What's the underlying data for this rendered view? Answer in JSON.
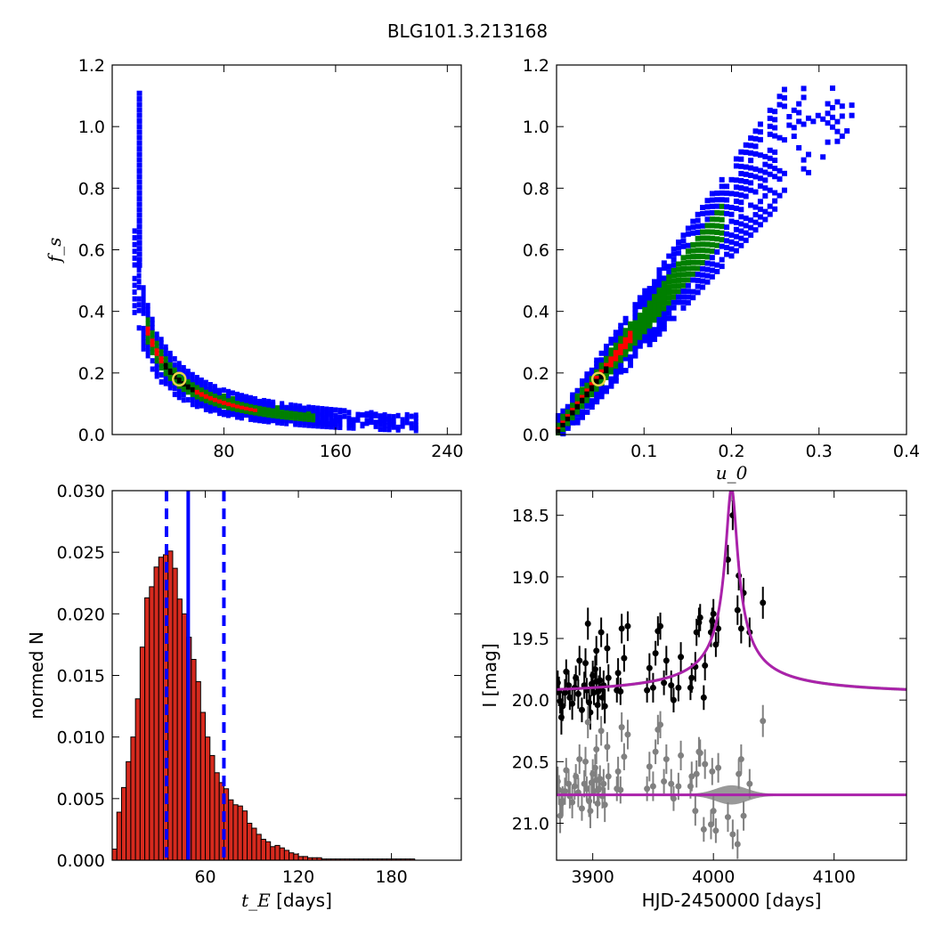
{
  "figure_title": "BLG101.3.213168",
  "chart_data": [
    {
      "type": "heatmap",
      "panel": "top-left",
      "xlabel": "",
      "ylabel": "f_s",
      "xlim": [
        0,
        250
      ],
      "ylim": [
        0,
        1.2
      ],
      "xticks": [
        "80",
        "160",
        "240"
      ],
      "xtick_values": [
        80,
        160,
        240
      ],
      "yticks": [
        "0.0",
        "0.2",
        "0.4",
        "0.6",
        "0.8",
        "1.0",
        "1.2"
      ],
      "ytick_values": [
        0,
        0.2,
        0.4,
        0.6,
        0.8,
        1.0,
        1.2
      ],
      "colors": {
        "outer": "#0000ff",
        "middle": "#007f00",
        "inner": "#ff0000",
        "core": "#000000"
      },
      "best_fit": {
        "tE": 48,
        "fs": 0.18
      },
      "relation": "fs = 8.6 / tE (approx. locus of the posterior)",
      "tE_range_outer": [
        16,
        220
      ],
      "tE_range_middle": [
        18,
        145
      ],
      "tE_range_inner": [
        25,
        105
      ]
    },
    {
      "type": "heatmap",
      "panel": "top-right",
      "xlabel": "u_0",
      "ylabel": "",
      "xlim": [
        0,
        0.4
      ],
      "ylim": [
        0,
        1.2
      ],
      "xticks": [
        "0.1",
        "0.2",
        "0.3",
        "0.4"
      ],
      "xtick_values": [
        0.1,
        0.2,
        0.3,
        0.4
      ],
      "yticks": [
        "0.0",
        "0.2",
        "0.4",
        "0.6",
        "0.8",
        "1.0",
        "1.2"
      ],
      "ytick_values": [
        0,
        0.2,
        0.4,
        0.6,
        0.8,
        1.0,
        1.2
      ],
      "colors": {
        "outer": "#0000ff",
        "middle": "#007f00",
        "inner": "#ff0000",
        "core": "#000000"
      },
      "best_fit": {
        "u0": 0.048,
        "fs": 0.18
      },
      "relation": "fs = 3.6 * u0 (approx. locus of the posterior)",
      "u0_range_outer": [
        0.0,
        0.34
      ],
      "u0_range_middle": [
        0.0,
        0.19
      ],
      "u0_range_inner": [
        0.0,
        0.09
      ]
    },
    {
      "type": "bar",
      "panel": "bottom-left",
      "xlabel": "[days]",
      "xlabel_math": "t_E",
      "ylabel": "normed N",
      "xlim": [
        0,
        225
      ],
      "ylim": [
        0,
        0.03
      ],
      "xticks": [
        "60",
        "120",
        "180"
      ],
      "xtick_values": [
        60,
        120,
        180
      ],
      "yticks": [
        "0.000",
        "0.005",
        "0.010",
        "0.015",
        "0.020",
        "0.025",
        "0.030"
      ],
      "ytick_values": [
        0,
        0.005,
        0.01,
        0.015,
        0.02,
        0.025,
        0.03
      ],
      "bin_width": 3,
      "bin_start": 0,
      "values": [
        0.0009,
        0.0039,
        0.0059,
        0.008,
        0.01,
        0.0131,
        0.0173,
        0.0213,
        0.0222,
        0.0238,
        0.0246,
        0.0248,
        0.0251,
        0.0237,
        0.0212,
        0.02,
        0.0181,
        0.0163,
        0.0145,
        0.012,
        0.01,
        0.0085,
        0.0071,
        0.0063,
        0.0058,
        0.0049,
        0.0045,
        0.0044,
        0.004,
        0.003,
        0.0026,
        0.0021,
        0.0017,
        0.0015,
        0.0011,
        0.0012,
        0.001,
        0.0008,
        0.0006,
        0.0005,
        0.0003,
        0.0003,
        0.0002,
        0.0002,
        0.0002,
        0.0001,
        0.0001,
        0.0001,
        0.0001,
        0.0001,
        0.0001,
        0.0001,
        0.0001,
        0.0001,
        0.0001,
        0.0001,
        0.0001,
        0.0001,
        0.0001,
        0.0001,
        0.0001,
        0.0001,
        0.0001,
        0.0001,
        0.0001
      ],
      "bar_color": "#d62a1e",
      "vlines": [
        {
          "x": 35,
          "style": "dashed",
          "color": "#0000ff"
        },
        {
          "x": 49,
          "style": "solid",
          "color": "#0000ff"
        },
        {
          "x": 72,
          "style": "dashed",
          "color": "#0000ff"
        }
      ]
    },
    {
      "type": "scatter",
      "panel": "bottom-right",
      "xlabel": "HJD-2450000 [days]",
      "ylabel": "I [mag]",
      "xlim": [
        3870,
        4160
      ],
      "ylim": [
        21.3,
        18.3
      ],
      "y_inverted": true,
      "xticks": [
        "3900",
        "4000",
        "4100"
      ],
      "xtick_values": [
        3900,
        4000,
        4100
      ],
      "yticks": [
        "18.5",
        "19.0",
        "19.5",
        "20.0",
        "20.5",
        "21.0"
      ],
      "ytick_values": [
        18.5,
        19.0,
        19.5,
        20.0,
        20.5,
        21.0
      ],
      "model": {
        "baseline": 19.97,
        "t0": 4015,
        "peak": 18.28,
        "tE": 4.8,
        "color": "#aa22aa",
        "band_color": "#808080"
      },
      "residual_baseline": 20.77,
      "series": [
        {
          "color": "#000000",
          "points": [
            [
              3871,
              19.86,
              0.1
            ],
            [
              3872,
              19.93,
              0.12
            ],
            [
              3873,
              20.01,
              0.1
            ],
            [
              3874,
              20.14,
              0.14
            ],
            [
              3875,
              20.05,
              0.12
            ],
            [
              3877,
              19.94,
              0.11
            ],
            [
              3878,
              19.77,
              0.1
            ],
            [
              3880,
              19.88,
              0.12
            ],
            [
              3881,
              19.98,
              0.1
            ],
            [
              3883,
              20.03,
              0.13
            ],
            [
              3885,
              19.9,
              0.11
            ],
            [
              3886,
              19.82,
              0.1
            ],
            [
              3888,
              19.95,
              0.12
            ],
            [
              3889,
              19.68,
              0.12
            ],
            [
              3891,
              20.08,
              0.1
            ],
            [
              3893,
              19.88,
              0.11
            ],
            [
              3894,
              19.7,
              0.12
            ],
            [
              3895,
              19.92,
              0.1
            ],
            [
              3897,
              20.02,
              0.13
            ],
            [
              3898,
              20.1,
              0.14
            ],
            [
              3899,
              19.87,
              0.1
            ],
            [
              3900,
              19.8,
              0.12
            ],
            [
              3901,
              19.94,
              0.1
            ],
            [
              3902,
              19.75,
              0.11
            ],
            [
              3903,
              19.85,
              0.1
            ],
            [
              3904,
              20.04,
              0.12
            ],
            [
              3905,
              19.92,
              0.12
            ],
            [
              3906,
              19.84,
              0.11
            ],
            [
              3908,
              19.98,
              0.1
            ],
            [
              3909,
              19.88,
              0.12
            ],
            [
              3910,
              20.05,
              0.14
            ],
            [
              3912,
              19.58,
              0.12
            ],
            [
              3913,
              19.82,
              0.11
            ],
            [
              3896,
              19.38,
              0.13
            ],
            [
              3903,
              19.6,
              0.12
            ],
            [
              3907,
              19.45,
              0.12
            ],
            [
              3920,
              19.92,
              0.1
            ],
            [
              3921,
              19.78,
              0.12
            ],
            [
              3923,
              19.93,
              0.11
            ],
            [
              3924,
              19.42,
              0.12
            ],
            [
              3926,
              19.66,
              0.11
            ],
            [
              3929,
              19.4,
              0.12
            ],
            [
              3945,
              19.92,
              0.1
            ],
            [
              3947,
              19.74,
              0.12
            ],
            [
              3950,
              19.9,
              0.12
            ],
            [
              3952,
              19.62,
              0.1
            ],
            [
              3954,
              19.44,
              0.12
            ],
            [
              3956,
              19.4,
              0.11
            ],
            [
              3959,
              19.86,
              0.1
            ],
            [
              3961,
              19.68,
              0.12
            ],
            [
              3965,
              19.88,
              0.12
            ],
            [
              3967,
              20.0,
              0.1
            ],
            [
              3971,
              19.9,
              0.11
            ],
            [
              3973,
              19.65,
              0.12
            ],
            [
              3981,
              19.9,
              0.1
            ],
            [
              3982,
              19.82,
              0.12
            ],
            [
              3985,
              19.73,
              0.12
            ],
            [
              3986,
              19.45,
              0.11
            ],
            [
              3988,
              19.37,
              0.12
            ],
            [
              3989,
              19.33,
              0.11
            ],
            [
              3992,
              19.98,
              0.1
            ],
            [
              3993,
              19.72,
              0.12
            ],
            [
              3998,
              19.45,
              0.12
            ],
            [
              3999,
              19.36,
              0.11
            ],
            [
              4000,
              19.3,
              0.12
            ],
            [
              4002,
              19.55,
              0.1
            ],
            [
              4004,
              19.42,
              0.12
            ],
            [
              4012,
              18.86,
              0.12
            ],
            [
              4016,
              18.5,
              0.12
            ],
            [
              4020,
              19.27,
              0.12
            ],
            [
              4021,
              18.99,
              0.12
            ],
            [
              4023,
              19.42,
              0.12
            ],
            [
              4025,
              19.13,
              0.12
            ],
            [
              4030,
              19.45,
              0.12
            ],
            [
              4041,
              19.21,
              0.13
            ]
          ]
        },
        {
          "color": "#808080",
          "points": [
            [
              3871,
              20.66,
              0.12
            ],
            [
              3872,
              20.73,
              0.12
            ],
            [
              3873,
              20.94,
              0.14
            ],
            [
              3874,
              20.84,
              0.12
            ],
            [
              3875,
              20.82,
              0.12
            ],
            [
              3877,
              20.74,
              0.11
            ],
            [
              3878,
              20.57,
              0.1
            ],
            [
              3880,
              20.68,
              0.12
            ],
            [
              3881,
              20.78,
              0.1
            ],
            [
              3883,
              20.83,
              0.13
            ],
            [
              3885,
              20.7,
              0.11
            ],
            [
              3886,
              20.62,
              0.1
            ],
            [
              3888,
              20.75,
              0.12
            ],
            [
              3889,
              20.48,
              0.12
            ],
            [
              3891,
              20.88,
              0.1
            ],
            [
              3893,
              20.68,
              0.11
            ],
            [
              3894,
              20.5,
              0.12
            ],
            [
              3895,
              20.72,
              0.1
            ],
            [
              3897,
              20.82,
              0.13
            ],
            [
              3898,
              20.9,
              0.14
            ],
            [
              3899,
              20.67,
              0.1
            ],
            [
              3900,
              20.6,
              0.12
            ],
            [
              3901,
              20.74,
              0.1
            ],
            [
              3902,
              20.55,
              0.11
            ],
            [
              3903,
              20.65,
              0.1
            ],
            [
              3904,
              20.84,
              0.12
            ],
            [
              3905,
              20.72,
              0.12
            ],
            [
              3906,
              20.64,
              0.11
            ],
            [
              3908,
              20.78,
              0.1
            ],
            [
              3909,
              20.68,
              0.12
            ],
            [
              3910,
              20.85,
              0.14
            ],
            [
              3912,
              20.38,
              0.12
            ],
            [
              3913,
              20.62,
              0.11
            ],
            [
              3896,
              20.18,
              0.13
            ],
            [
              3903,
              20.4,
              0.12
            ],
            [
              3907,
              20.25,
              0.12
            ],
            [
              3920,
              20.72,
              0.1
            ],
            [
              3921,
              20.58,
              0.12
            ],
            [
              3923,
              20.73,
              0.11
            ],
            [
              3924,
              20.22,
              0.12
            ],
            [
              3926,
              20.46,
              0.11
            ],
            [
              3929,
              20.28,
              0.12
            ],
            [
              3945,
              20.72,
              0.1
            ],
            [
              3947,
              20.54,
              0.12
            ],
            [
              3950,
              20.7,
              0.12
            ],
            [
              3952,
              20.42,
              0.1
            ],
            [
              3954,
              20.24,
              0.12
            ],
            [
              3956,
              20.2,
              0.11
            ],
            [
              3959,
              20.66,
              0.1
            ],
            [
              3961,
              20.48,
              0.12
            ],
            [
              3965,
              20.68,
              0.12
            ],
            [
              3967,
              20.8,
              0.1
            ],
            [
              3971,
              20.7,
              0.11
            ],
            [
              3973,
              20.45,
              0.12
            ],
            [
              3981,
              20.7,
              0.1
            ],
            [
              3982,
              20.62,
              0.12
            ],
            [
              3985,
              20.9,
              0.12
            ],
            [
              3986,
              20.6,
              0.11
            ],
            [
              3988,
              20.42,
              0.12
            ],
            [
              3989,
              20.43,
              0.11
            ],
            [
              3992,
              21.05,
              0.1
            ],
            [
              3993,
              20.52,
              0.12
            ],
            [
              3998,
              21.01,
              0.12
            ],
            [
              3999,
              20.58,
              0.11
            ],
            [
              4000,
              20.9,
              0.12
            ],
            [
              4002,
              21.06,
              0.1
            ],
            [
              4004,
              20.55,
              0.12
            ],
            [
              4012,
              20.95,
              0.12
            ],
            [
              4016,
              21.09,
              0.12
            ],
            [
              4020,
              21.17,
              0.12
            ],
            [
              4021,
              20.6,
              0.12
            ],
            [
              4023,
              20.48,
              0.12
            ],
            [
              4025,
              20.94,
              0.12
            ],
            [
              4030,
              20.68,
              0.12
            ],
            [
              4041,
              20.17,
              0.13
            ]
          ]
        }
      ]
    }
  ]
}
